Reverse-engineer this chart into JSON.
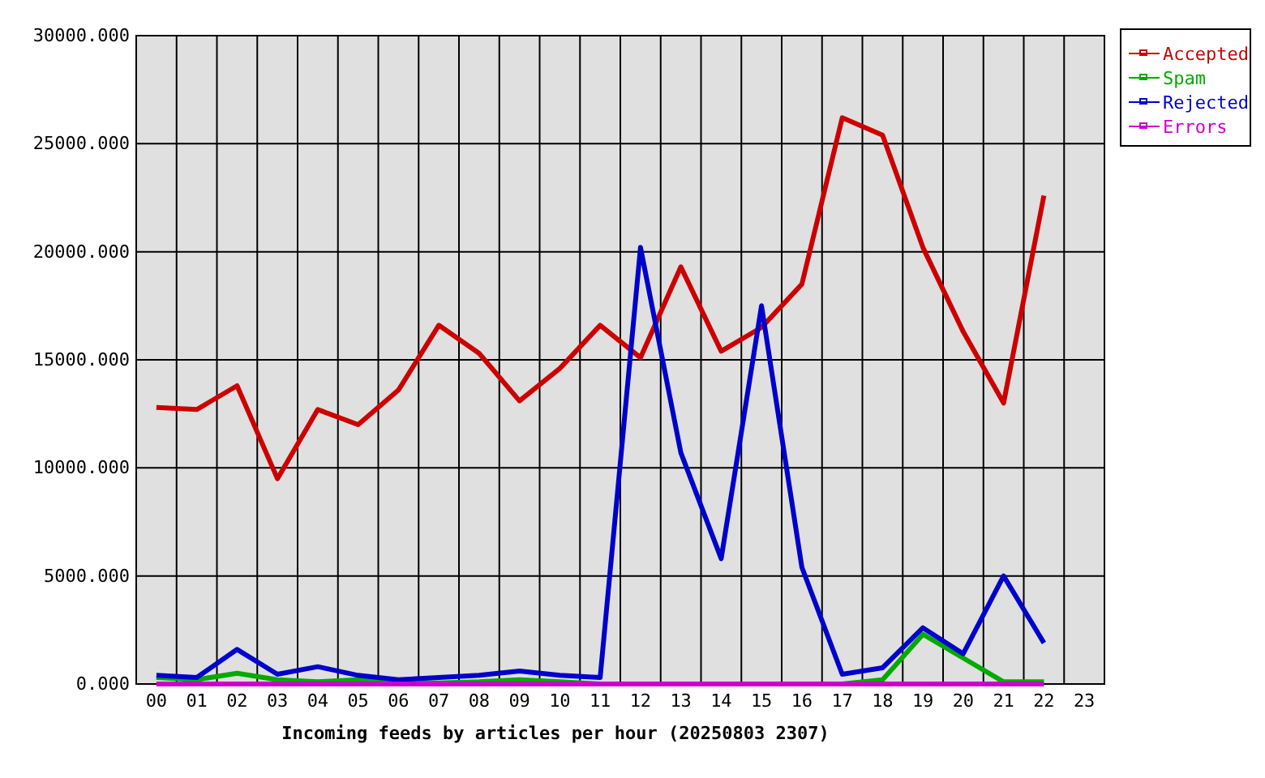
{
  "chart_data": {
    "type": "line",
    "xlabel": "Incoming feeds by articles per hour (20250803 2307)",
    "categories": [
      "00",
      "01",
      "02",
      "03",
      "04",
      "05",
      "06",
      "07",
      "08",
      "09",
      "10",
      "11",
      "12",
      "13",
      "14",
      "15",
      "16",
      "17",
      "18",
      "19",
      "20",
      "21",
      "22",
      "23"
    ],
    "series": [
      {
        "name": "Accepted",
        "color": "#cc0000",
        "values": [
          12800,
          12700,
          13800,
          9500,
          12700,
          12000,
          13600,
          16600,
          15300,
          13100,
          14600,
          16600,
          15100,
          19300,
          15400,
          16500,
          18500,
          26200,
          25400,
          20200,
          16300,
          13000,
          22600,
          null
        ]
      },
      {
        "name": "Spam",
        "color": "#00aa00",
        "values": [
          300,
          200,
          500,
          200,
          100,
          200,
          50,
          50,
          100,
          200,
          100,
          0,
          0,
          0,
          0,
          0,
          0,
          0,
          200,
          2300,
          1200,
          100,
          100,
          null
        ]
      },
      {
        "name": "Rejected",
        "color": "#0000cc",
        "values": [
          400,
          300,
          1600,
          450,
          800,
          400,
          200,
          300,
          400,
          600,
          400,
          300,
          20200,
          10700,
          5800,
          17500,
          5400,
          450,
          750,
          2600,
          1400,
          5000,
          1900,
          null
        ]
      },
      {
        "name": "Errors",
        "color": "#cc00cc",
        "values": [
          0,
          0,
          0,
          0,
          0,
          0,
          0,
          0,
          0,
          0,
          0,
          0,
          0,
          0,
          0,
          0,
          0,
          0,
          0,
          0,
          0,
          0,
          0,
          null
        ]
      }
    ],
    "ylim": [
      0,
      30000
    ],
    "yticks": [
      {
        "value": 0,
        "label": "0.000"
      },
      {
        "value": 5000,
        "label": "5000.000"
      },
      {
        "value": 10000,
        "label": "10000.000"
      },
      {
        "value": 15000,
        "label": "15000.000"
      },
      {
        "value": 20000,
        "label": "20000.000"
      },
      {
        "value": 25000,
        "label": "25000.000"
      },
      {
        "value": 30000,
        "label": "30000.000"
      }
    ],
    "grid": true,
    "legend": "right",
    "marker": "none",
    "line_style": "solid"
  }
}
